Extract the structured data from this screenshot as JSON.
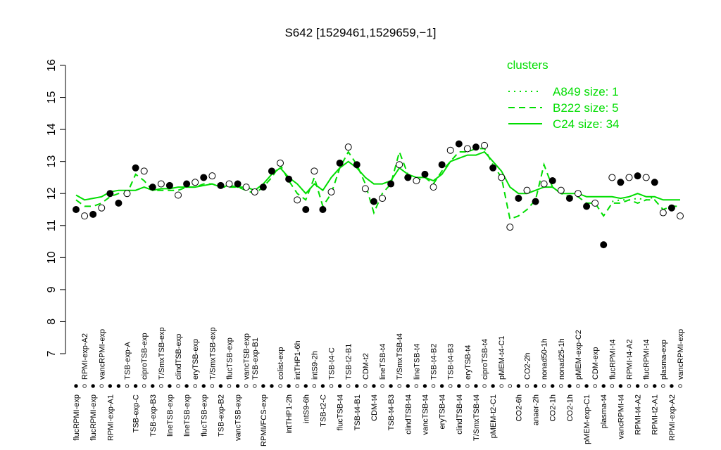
{
  "chart_data": {
    "type": "line",
    "title": "S642 [1529461,1529659,−1]",
    "legend_title": "clusters",
    "ylim": [
      7,
      16
    ],
    "yticks": [
      7,
      8,
      9,
      10,
      11,
      12,
      13,
      14,
      15,
      16
    ],
    "categories": [
      "flucRPMI-exp",
      "RPMI-exp-A2",
      "flucRPMI-exp",
      "vancRPMI-exp",
      "RPMI-exp-A1",
      null,
      "TSB-exp-A",
      "TSB-exp-C",
      "ciproTSB-exp",
      "TSB-exp-B3",
      "T/SmxTSB-exp",
      "lineTSB-exp",
      "clindTSB-exp",
      "lineTSB-exp",
      "eryTSB-exp",
      "flucTSB-exp",
      "T/SmxTSB-exp",
      "TSB-exp-B2",
      "flucTSB-exp",
      "vancTSB-exp",
      "vancTSB-exp",
      "TSB-exp-B1",
      "RPMI/FCS-exp",
      null,
      "colist-exp",
      "intTHP1-2h",
      "intTHP1-6h",
      "intS9-6h",
      "intS9-2h",
      "TSB-t2-C",
      "TSB-t4-C",
      "flucTSB-t4",
      "TSB-t2-B1",
      "TSB-t4-B1",
      "CDM-t2",
      "CDM-t4",
      "lineTSB-t4",
      "TSB-t4-B3",
      "T/SmxTSB-t4",
      "clindTSB-t4",
      "lineTSB-t4",
      "vancTSB-t4",
      "TSB-t4-B2",
      "eryTSB-t4",
      "TSB-t4-B3",
      "clindTSB-t4",
      "eryTSB-t4",
      "T/SmxTSB-t4",
      "ciproTSB-t4",
      "pMEM-t2-C1",
      "pMEM-t4-C1",
      null,
      "CO2-6h",
      "CO2-2h",
      "anaer-2h",
      "nonad50-1h",
      "CO2-1h",
      "nonad25-1h",
      "CO2-1h",
      "pMEM-exp-C2",
      "pMEM-exp-C1",
      "CDM-exp",
      "plasma-t4",
      "flucRPMI-t4",
      "vancRPMI-t4",
      "RPMI-t4-A2",
      "RPMI-t4-A2",
      "flucRPMI-t4",
      "RPMI-t2-A1",
      "plasma-exp",
      "RPMI-exp-A2",
      "vancRPMI-exp"
    ],
    "points": {
      "values": [
        11.5,
        11.3,
        11.35,
        11.55,
        12.0,
        11.7,
        12.0,
        12.8,
        12.7,
        12.2,
        12.3,
        12.25,
        11.95,
        12.3,
        12.35,
        12.5,
        12.55,
        12.25,
        12.3,
        12.3,
        12.2,
        12.05,
        12.2,
        12.7,
        12.95,
        12.45,
        11.8,
        11.5,
        12.7,
        11.5,
        12.05,
        12.95,
        13.45,
        12.9,
        12.15,
        11.75,
        11.85,
        12.3,
        12.9,
        12.5,
        12.4,
        12.6,
        12.2,
        12.9,
        13.35,
        13.55,
        13.4,
        13.45,
        13.5,
        12.8,
        12.5,
        10.95,
        11.85,
        12.1,
        11.75,
        12.3,
        12.4,
        12.1,
        11.85,
        12.0,
        11.6,
        11.7,
        10.4,
        12.5,
        12.35,
        12.5,
        12.55,
        12.5,
        12.35,
        11.4,
        11.55,
        11.3
      ],
      "filled": [
        true,
        false,
        true,
        false,
        true,
        true,
        false,
        true,
        false,
        true,
        false,
        true,
        false,
        true,
        false,
        true,
        false,
        true,
        false,
        true,
        false,
        false,
        true,
        true,
        false,
        true,
        false,
        true,
        false,
        true,
        false,
        true,
        false,
        true,
        false,
        true,
        false,
        true,
        false,
        true,
        false,
        true,
        false,
        true,
        false,
        true,
        false,
        true,
        false,
        true,
        false,
        false,
        true,
        false,
        true,
        false,
        true,
        false,
        true,
        false,
        true,
        false,
        true,
        false,
        true,
        false,
        true,
        false,
        true,
        false,
        true,
        false
      ]
    },
    "series": [
      {
        "name": "A849 size: 1",
        "color": "#00dd00",
        "style": "dotted",
        "values": [
          null,
          null,
          null,
          null,
          null,
          null,
          null,
          null,
          null,
          null,
          null,
          null,
          null,
          null,
          null,
          null,
          null,
          null,
          null,
          null,
          null,
          null,
          null,
          null,
          null,
          null,
          null,
          null,
          null,
          null,
          null,
          null,
          null,
          null,
          null,
          null,
          null,
          null,
          null,
          null,
          null,
          null,
          null,
          null,
          null,
          null,
          null,
          null,
          null,
          null,
          null,
          null,
          null,
          null,
          null,
          null,
          null,
          null,
          null,
          null,
          null,
          null,
          null,
          11.75,
          11.8,
          11.8,
          11.85,
          11.8,
          11.9,
          null,
          null,
          null
        ]
      },
      {
        "name": "B222 size: 5",
        "color": "#00dd00",
        "style": "dashed",
        "values": [
          11.8,
          11.6,
          11.6,
          11.7,
          11.9,
          12.0,
          12.0,
          12.6,
          12.4,
          12.1,
          12.1,
          12.1,
          12.1,
          12.2,
          12.2,
          12.3,
          12.3,
          12.2,
          12.2,
          12.2,
          12.1,
          12.0,
          12.2,
          12.5,
          12.9,
          12.4,
          12.0,
          11.8,
          12.5,
          11.6,
          12.0,
          12.8,
          13.3,
          12.9,
          12.3,
          11.4,
          12.0,
          12.3,
          13.3,
          12.6,
          12.4,
          12.5,
          12.3,
          12.7,
          13.0,
          13.3,
          13.3,
          13.4,
          13.4,
          12.9,
          12.5,
          11.2,
          11.3,
          11.5,
          11.8,
          12.9,
          12.2,
          12.0,
          11.9,
          11.9,
          11.7,
          11.7,
          11.3,
          11.7,
          11.7,
          11.8,
          11.7,
          11.8,
          11.8,
          11.5,
          11.6,
          11.6
        ]
      },
      {
        "name": "C24 size: 34",
        "color": "#00dd00",
        "style": "solid",
        "values": [
          11.95,
          11.8,
          11.85,
          11.9,
          12.05,
          12.1,
          12.1,
          12.1,
          12.2,
          12.1,
          12.15,
          12.15,
          12.2,
          12.2,
          12.2,
          12.25,
          12.3,
          12.2,
          12.25,
          12.2,
          12.2,
          12.1,
          12.3,
          12.6,
          12.8,
          12.5,
          12.3,
          12.0,
          12.3,
          12.1,
          12.5,
          12.8,
          13.0,
          12.8,
          12.5,
          12.3,
          12.3,
          12.4,
          12.8,
          12.6,
          12.5,
          12.5,
          12.4,
          12.6,
          13.0,
          13.1,
          13.2,
          13.2,
          13.3,
          13.0,
          12.7,
          12.2,
          12.0,
          12.0,
          12.1,
          12.2,
          12.2,
          12.0,
          12.0,
          12.0,
          11.9,
          11.9,
          11.9,
          11.9,
          11.85,
          11.9,
          12.0,
          11.9,
          11.9,
          11.8,
          11.8,
          11.8
        ]
      }
    ]
  }
}
